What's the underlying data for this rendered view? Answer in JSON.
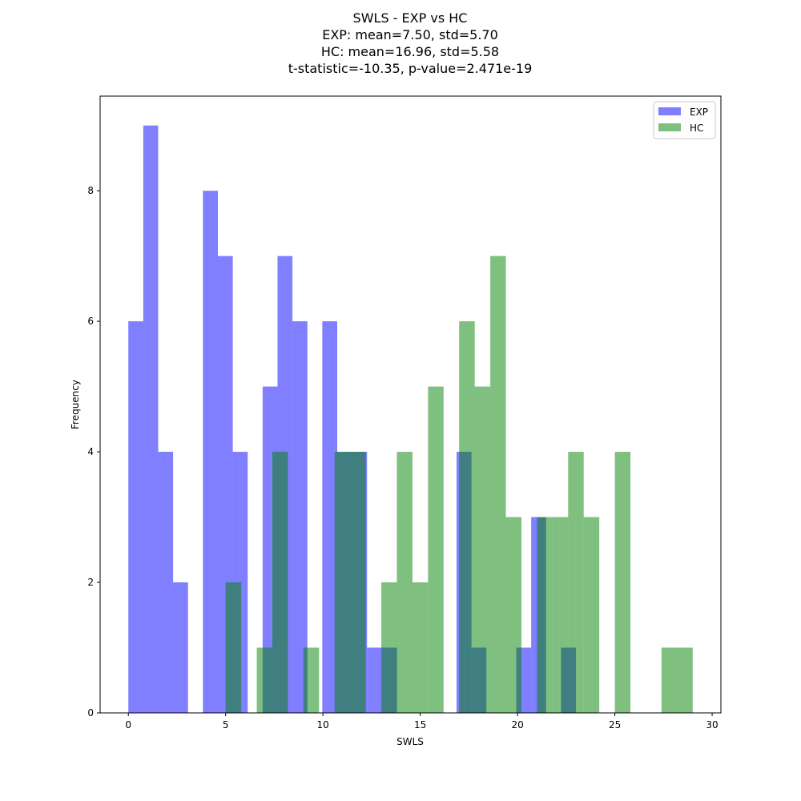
{
  "chart_data": {
    "type": "bar",
    "title_lines": [
      "SWLS - EXP vs HC",
      "EXP: mean=7.50, std=5.70",
      "HC: mean=16.96, std=5.58",
      "t-statistic=-10.35, p-value=2.471e-19"
    ],
    "xlabel": "SWLS",
    "ylabel": "Frequency",
    "xlim": [
      -1.45,
      30.45
    ],
    "ylim": [
      0,
      9.45
    ],
    "xticks": [
      0,
      5,
      10,
      15,
      20,
      25,
      30
    ],
    "yticks": [
      0,
      2,
      4,
      6,
      8
    ],
    "grid": false,
    "legend_position": "top-right",
    "series": [
      {
        "name": "EXP",
        "color": "#0000ff",
        "alpha": 0.5,
        "bin_start": 0,
        "bin_width": 0.7667,
        "values": [
          6,
          9,
          4,
          2,
          0,
          8,
          7,
          4,
          0,
          5,
          7,
          6,
          0,
          6,
          4,
          4,
          1,
          1,
          0,
          0,
          0,
          0,
          4,
          1,
          0,
          0,
          1,
          3,
          0,
          1
        ]
      },
      {
        "name": "HC",
        "color": "#008000",
        "alpha": 0.5,
        "bin_start": 5,
        "bin_width": 0.8,
        "values": [
          2,
          0,
          1,
          4,
          0,
          1,
          0,
          4,
          4,
          0,
          2,
          4,
          2,
          5,
          0,
          6,
          5,
          7,
          3,
          0,
          3,
          3,
          4,
          3,
          0,
          4,
          0,
          0,
          1,
          1
        ]
      }
    ]
  }
}
